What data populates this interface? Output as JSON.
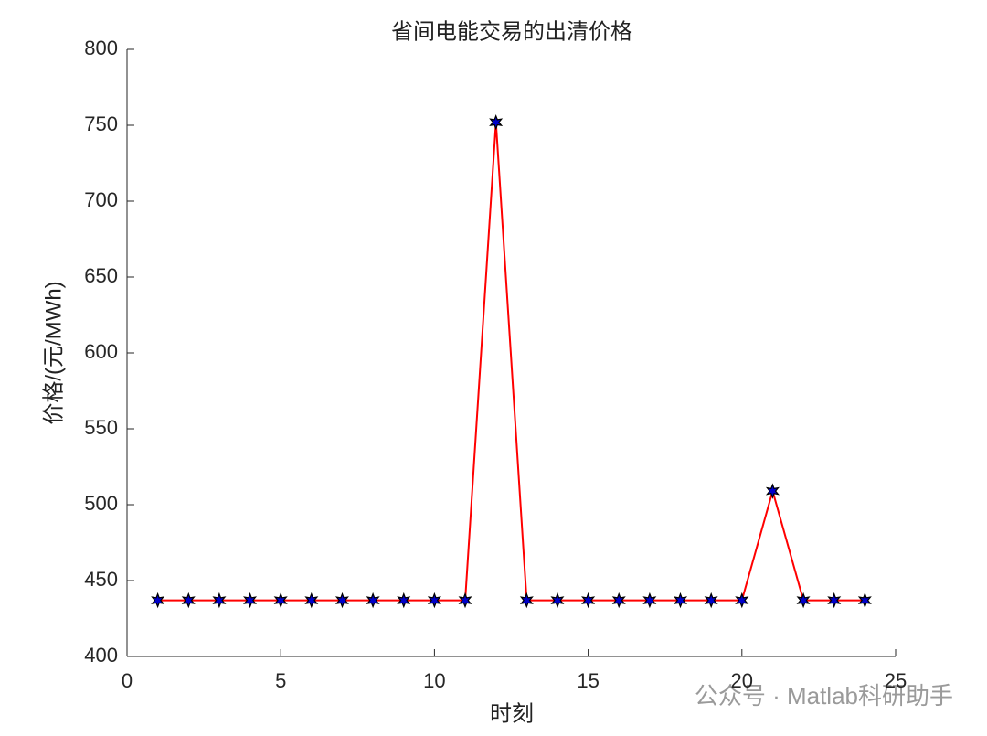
{
  "chart_data": {
    "type": "line",
    "title": "省间电能交易的出清价格",
    "x_label": "时刻",
    "y_label": "价格/(元/MWh)",
    "x": [
      1,
      2,
      3,
      4,
      5,
      6,
      7,
      8,
      9,
      10,
      11,
      12,
      13,
      14,
      15,
      16,
      17,
      18,
      19,
      20,
      21,
      22,
      23,
      24
    ],
    "series": [
      {
        "name": "出清价格",
        "color": "#ff0000",
        "marker_color": "#0000cc",
        "values": [
          437,
          437,
          437,
          437,
          437,
          437,
          437,
          437,
          437,
          437,
          437,
          752,
          437,
          437,
          437,
          437,
          437,
          437,
          437,
          437,
          509,
          437,
          437,
          437
        ]
      }
    ],
    "xlim": [
      0,
      25
    ],
    "xticks": [
      0,
      5,
      10,
      15,
      20,
      25
    ],
    "ylim": [
      400,
      800
    ],
    "yticks": [
      400,
      450,
      500,
      550,
      600,
      650,
      700,
      750,
      800
    ],
    "grid": false
  },
  "watermark": "公众号 · Matlab科研助手"
}
